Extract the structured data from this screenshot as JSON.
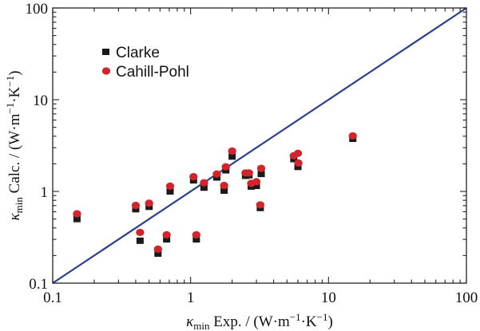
{
  "chart_data": {
    "type": "scatter",
    "x_scale": "log",
    "y_scale": "log",
    "xlim": [
      0.1,
      100
    ],
    "ylim": [
      0.1,
      100
    ],
    "x_ticks": [
      "0.1",
      "1",
      "10",
      "100"
    ],
    "y_ticks": [
      "0.1",
      "1",
      "10",
      "100"
    ],
    "xlabel": {
      "symbol": "κ",
      "subscript": "min",
      "text": " Exp. / (W·m",
      "sup1": "−1",
      "mid": "·K",
      "sup2": "−1",
      "end": ")"
    },
    "ylabel": {
      "symbol": "κ",
      "subscript": "min",
      "text": " Calc. / (W·m",
      "sup1": "−1",
      "mid": "·K",
      "sup2": "−1",
      "end": ")"
    },
    "reference_line": {
      "x": [
        0.1,
        100
      ],
      "y": [
        0.1,
        100
      ],
      "color": "#2b3f8f"
    },
    "legend_position": "upper-left",
    "series": [
      {
        "name": "Clarke",
        "marker": "square",
        "color": "#1a1a1a",
        "x": [
          0.15,
          0.4,
          0.43,
          0.5,
          0.58,
          0.67,
          0.71,
          1.05,
          1.1,
          1.25,
          1.55,
          1.75,
          1.8,
          2.0,
          2.5,
          2.65,
          2.75,
          3.0,
          3.2,
          3.25,
          5.6,
          6.0,
          15.0
        ],
        "y": [
          0.5,
          0.64,
          0.29,
          0.68,
          0.21,
          0.3,
          1.0,
          1.32,
          0.3,
          1.1,
          1.42,
          1.02,
          1.7,
          2.4,
          1.48,
          1.5,
          1.13,
          1.15,
          0.66,
          1.55,
          2.25,
          1.85,
          3.75
        ]
      },
      {
        "name": "Cahill-Pohl",
        "marker": "circle",
        "color": "#d0252b",
        "x": [
          0.15,
          0.4,
          0.43,
          0.5,
          0.58,
          0.67,
          0.71,
          1.05,
          1.1,
          1.25,
          1.55,
          1.75,
          1.8,
          2.0,
          2.5,
          2.65,
          2.75,
          3.0,
          3.2,
          3.25,
          5.6,
          6.0,
          6.05,
          15.0
        ],
        "y": [
          0.56,
          0.69,
          0.35,
          0.73,
          0.23,
          0.33,
          1.12,
          1.42,
          0.33,
          1.22,
          1.52,
          1.14,
          1.82,
          2.7,
          1.56,
          1.56,
          1.2,
          1.25,
          0.7,
          1.75,
          2.4,
          2.55,
          2.0,
          3.95
        ]
      }
    ]
  },
  "colors": {
    "axis": "#222222",
    "reference_line": "#2b3f8f",
    "clarke": "#1a1a1a",
    "cahill_pohl": "#d0252b"
  }
}
